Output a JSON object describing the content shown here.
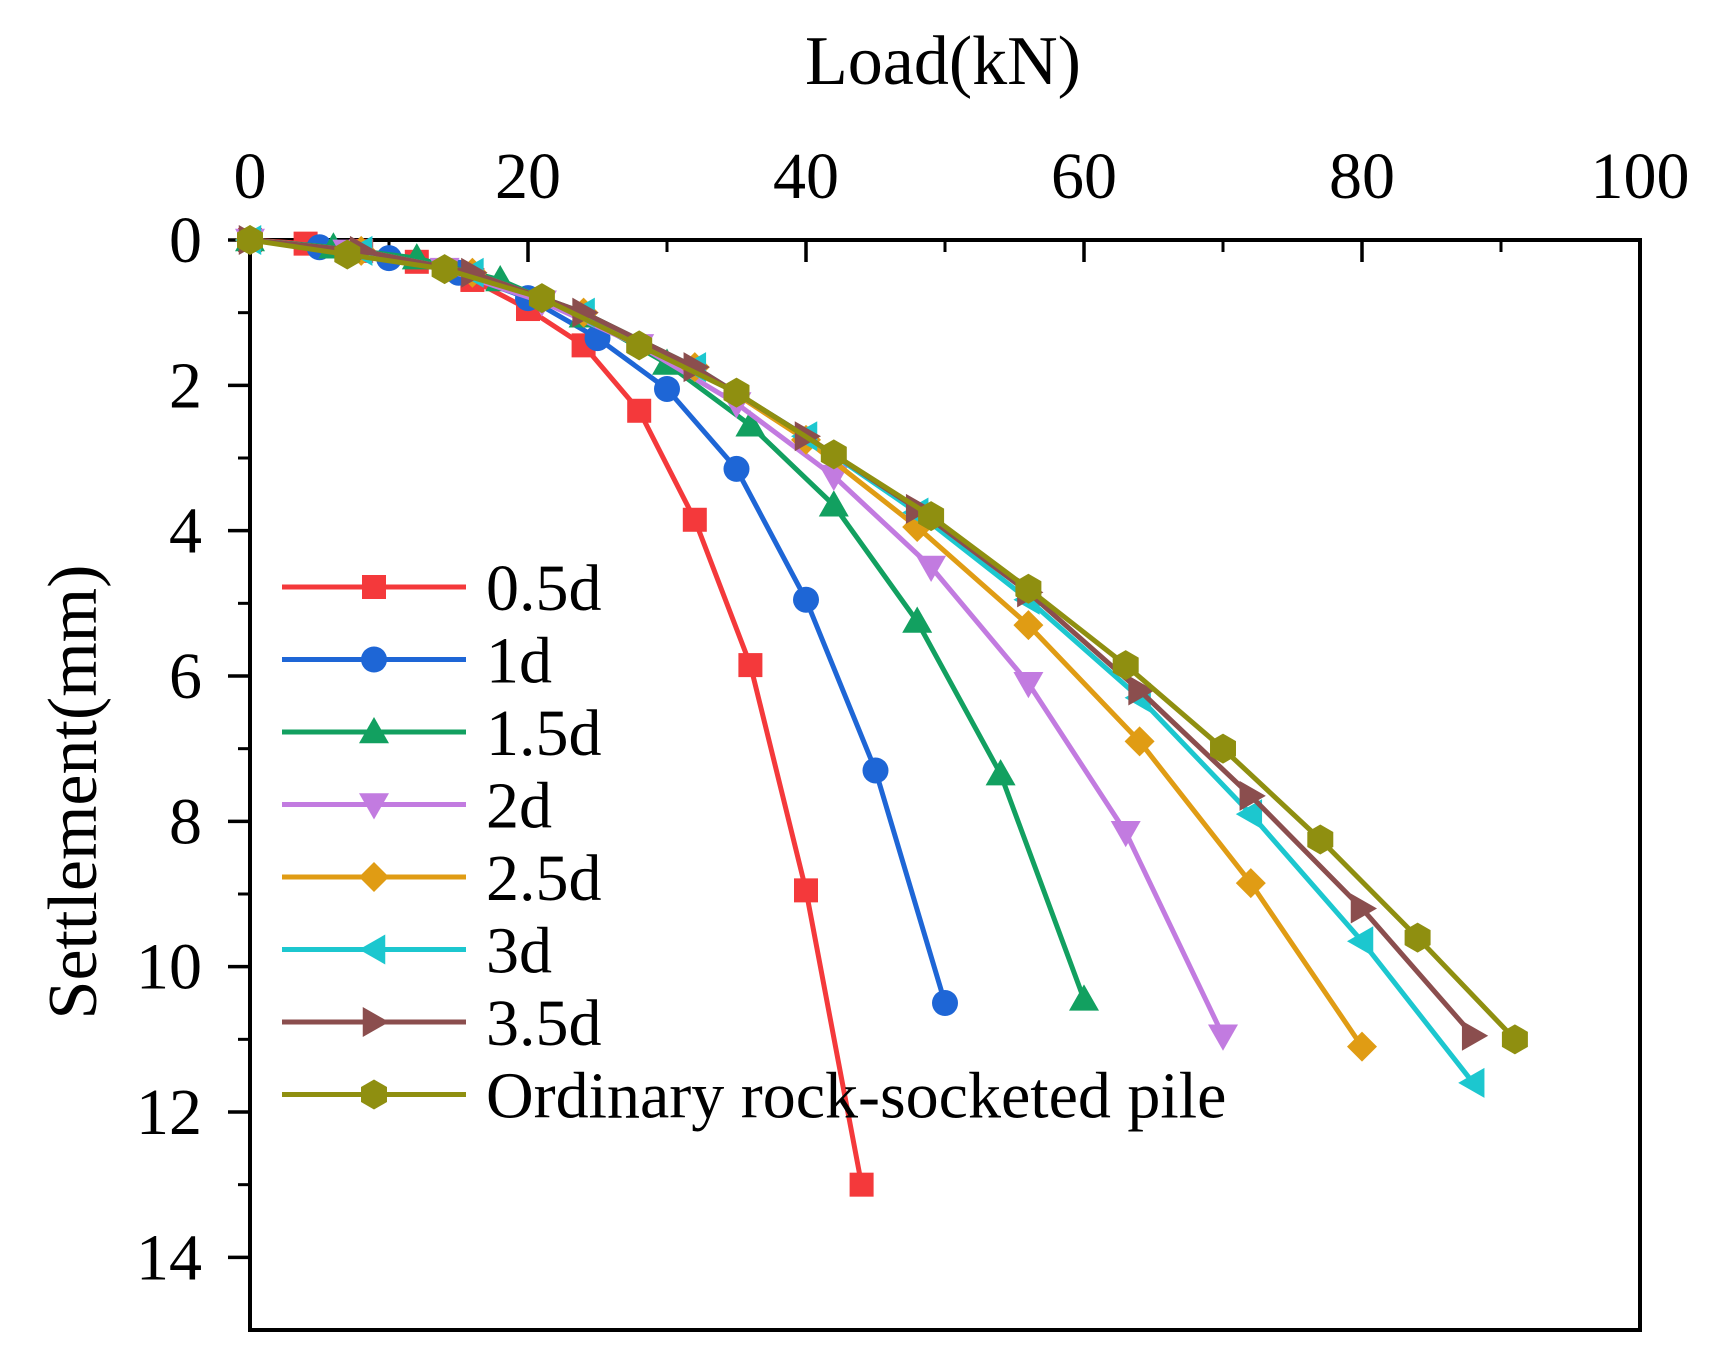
{
  "chart_data": {
    "type": "line",
    "title": "",
    "xlabel": "Load(kN)",
    "ylabel": "Settlement(mm)",
    "x_axis_position": "top",
    "y_axis_inverted": true,
    "xlim": [
      0,
      100
    ],
    "ylim": [
      0,
      15
    ],
    "xticks": [
      0,
      20,
      40,
      60,
      80,
      100
    ],
    "xtick_labels": [
      "0",
      "20",
      "40",
      "60",
      "80",
      "100"
    ],
    "yticks": [
      0,
      2,
      4,
      6,
      8,
      10,
      12,
      14
    ],
    "ytick_labels": [
      "0",
      "2",
      "4",
      "6",
      "8",
      "10",
      "12",
      "14"
    ],
    "grid": false,
    "legend_position": "bottom-left",
    "series": [
      {
        "name": "0.5d",
        "color": "#f4393b",
        "marker": "square",
        "x": [
          0,
          4,
          8,
          12,
          16,
          20,
          24,
          28,
          32,
          36,
          40,
          44
        ],
        "y": [
          0,
          0.05,
          0.15,
          0.3,
          0.55,
          0.95,
          1.45,
          2.35,
          3.85,
          5.85,
          8.95,
          13.0
        ]
      },
      {
        "name": "1d",
        "color": "#1e66d6",
        "marker": "circle",
        "x": [
          0,
          5,
          10,
          15,
          20,
          25,
          30,
          35,
          40,
          45,
          50
        ],
        "y": [
          0,
          0.1,
          0.25,
          0.45,
          0.8,
          1.35,
          2.05,
          3.15,
          4.95,
          7.3,
          10.5
        ]
      },
      {
        "name": "1.5d",
        "color": "#12a060",
        "marker": "triangle-up",
        "x": [
          0,
          6,
          12,
          18,
          24,
          30,
          36,
          42,
          48,
          54,
          60
        ],
        "y": [
          0,
          0.1,
          0.25,
          0.55,
          1.05,
          1.7,
          2.55,
          3.65,
          5.25,
          7.35,
          10.45
        ]
      },
      {
        "name": "2d",
        "color": "#c27be0",
        "marker": "triangle-down",
        "x": [
          0,
          7,
          14,
          21,
          28,
          35,
          42,
          49,
          56,
          63,
          70
        ],
        "y": [
          0,
          0.15,
          0.4,
          0.85,
          1.45,
          2.25,
          3.25,
          4.5,
          6.1,
          8.15,
          10.95
        ]
      },
      {
        "name": "2.5d",
        "color": "#e09c14",
        "marker": "diamond",
        "x": [
          0,
          8,
          16,
          24,
          32,
          40,
          48,
          56,
          64,
          72,
          80
        ],
        "y": [
          0,
          0.15,
          0.45,
          1.0,
          1.75,
          2.75,
          3.95,
          5.3,
          6.9,
          8.85,
          11.1
        ]
      },
      {
        "name": "3d",
        "color": "#1cc7cf",
        "marker": "triangle-left",
        "x": [
          0,
          8,
          16,
          24,
          32,
          40,
          48,
          56,
          64,
          72,
          80,
          88
        ],
        "y": [
          0,
          0.15,
          0.45,
          1.0,
          1.75,
          2.7,
          3.75,
          4.95,
          6.3,
          7.9,
          9.65,
          11.6
        ]
      },
      {
        "name": "3.5d",
        "color": "#8b4e4e",
        "marker": "triangle-right",
        "x": [
          0,
          8,
          16,
          24,
          32,
          40,
          48,
          56,
          64,
          72,
          80,
          88
        ],
        "y": [
          0,
          0.15,
          0.45,
          1.0,
          1.75,
          2.7,
          3.7,
          4.85,
          6.2,
          7.65,
          9.2,
          10.95
        ]
      },
      {
        "name": "Ordinary rock-socketed pile",
        "color": "#8f8f10",
        "marker": "hexagon",
        "x": [
          0,
          7,
          14,
          21,
          28,
          35,
          42,
          49,
          56,
          63,
          70,
          77,
          84,
          91
        ],
        "y": [
          0,
          0.2,
          0.4,
          0.8,
          1.45,
          2.1,
          2.95,
          3.8,
          4.8,
          5.85,
          7.0,
          8.25,
          9.6,
          11.0
        ]
      }
    ]
  }
}
